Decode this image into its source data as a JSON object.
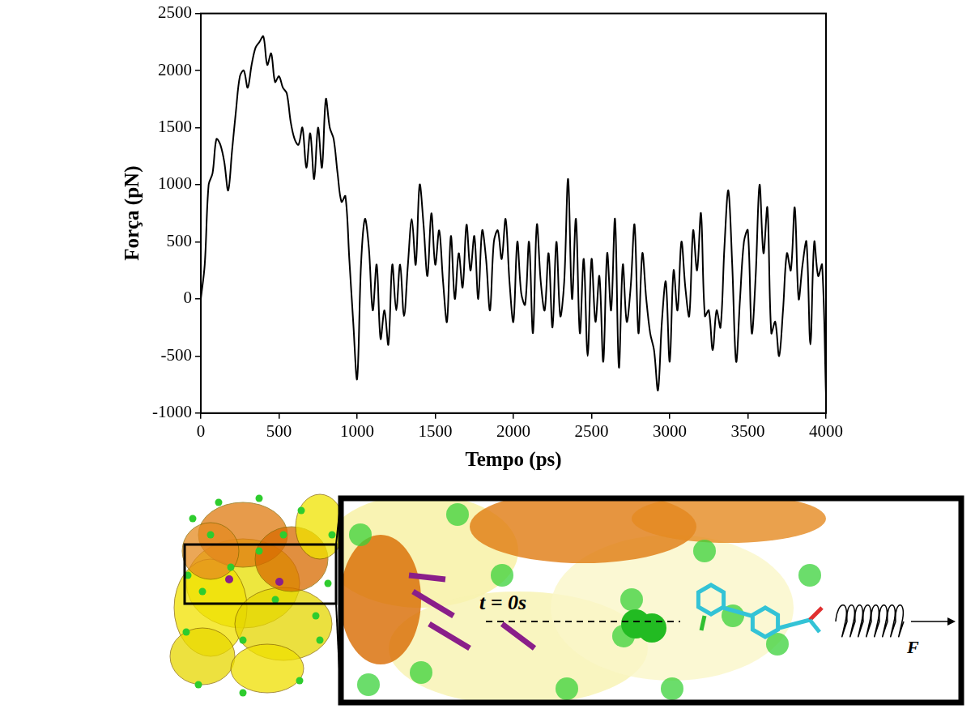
{
  "chart_data": {
    "type": "line",
    "x_label": "Tempo (ps)",
    "y_label": "Força (pN)",
    "x": [
      0,
      25,
      50,
      75,
      100,
      125,
      150,
      175,
      200,
      225,
      250,
      275,
      300,
      325,
      350,
      375,
      400,
      425,
      450,
      475,
      500,
      525,
      550,
      575,
      600,
      625,
      650,
      675,
      700,
      725,
      750,
      775,
      800,
      825,
      850,
      875,
      900,
      925,
      950,
      975,
      1000,
      1025,
      1050,
      1075,
      1100,
      1125,
      1150,
      1175,
      1200,
      1225,
      1250,
      1275,
      1300,
      1325,
      1350,
      1375,
      1400,
      1425,
      1450,
      1475,
      1500,
      1525,
      1550,
      1575,
      1600,
      1625,
      1650,
      1675,
      1700,
      1725,
      1750,
      1775,
      1800,
      1825,
      1850,
      1875,
      1900,
      1925,
      1950,
      1975,
      2000,
      2025,
      2050,
      2075,
      2100,
      2125,
      2150,
      2175,
      2200,
      2225,
      2250,
      2275,
      2300,
      2325,
      2350,
      2375,
      2400,
      2425,
      2450,
      2475,
      2500,
      2525,
      2550,
      2575,
      2600,
      2625,
      2650,
      2675,
      2700,
      2725,
      2750,
      2775,
      2800,
      2825,
      2850,
      2875,
      2900,
      2925,
      2950,
      2975,
      3000,
      3025,
      3050,
      3075,
      3100,
      3125,
      3150,
      3175,
      3200,
      3225,
      3250,
      3275,
      3300,
      3325,
      3350,
      3375,
      3400,
      3425,
      3450,
      3475,
      3500,
      3525,
      3550,
      3575,
      3600,
      3625,
      3650,
      3675,
      3700,
      3725,
      3750,
      3775,
      3800,
      3825,
      3850,
      3875,
      3900,
      3925,
      3950,
      3975,
      4000
    ],
    "values": [
      0,
      300,
      1000,
      1100,
      1400,
      1350,
      1200,
      950,
      1300,
      1650,
      1950,
      2000,
      1850,
      2050,
      2200,
      2250,
      2300,
      2050,
      2150,
      1900,
      1950,
      1850,
      1800,
      1550,
      1400,
      1350,
      1500,
      1150,
      1450,
      1050,
      1500,
      1150,
      1750,
      1500,
      1400,
      1100,
      850,
      900,
      350,
      -200,
      -700,
      300,
      700,
      450,
      -100,
      300,
      -350,
      -100,
      -400,
      300,
      -100,
      300,
      -150,
      300,
      700,
      300,
      1000,
      650,
      200,
      750,
      300,
      600,
      150,
      -200,
      550,
      0,
      400,
      100,
      650,
      250,
      550,
      0,
      600,
      350,
      -100,
      500,
      600,
      350,
      700,
      150,
      -200,
      500,
      50,
      -50,
      500,
      -300,
      650,
      150,
      -100,
      400,
      -250,
      500,
      -150,
      150,
      1050,
      0,
      700,
      -300,
      350,
      -500,
      350,
      -200,
      200,
      -550,
      400,
      -100,
      700,
      -600,
      300,
      -200,
      100,
      650,
      -300,
      400,
      0,
      -300,
      -450,
      -800,
      -200,
      150,
      -550,
      250,
      -100,
      500,
      100,
      -150,
      600,
      250,
      750,
      -150,
      -100,
      -450,
      -100,
      -250,
      450,
      950,
      300,
      -550,
      0,
      500,
      600,
      -300,
      200,
      1000,
      400,
      800,
      -300,
      -200,
      -500,
      -100,
      400,
      250,
      800,
      0,
      300,
      500,
      -400,
      500,
      200,
      300,
      -850
    ],
    "color": "#000000",
    "xlim": [
      0,
      4000
    ],
    "xticks": [
      0,
      500,
      1000,
      1500,
      2000,
      2500,
      3000,
      3500,
      4000
    ],
    "ylim": [
      -1000,
      2500
    ],
    "yticks": [
      -1000,
      -500,
      0,
      500,
      1000,
      1500,
      2000,
      2500
    ],
    "grid": false
  },
  "illustration": {
    "time_label": "t = 0s",
    "force_label": "F"
  }
}
